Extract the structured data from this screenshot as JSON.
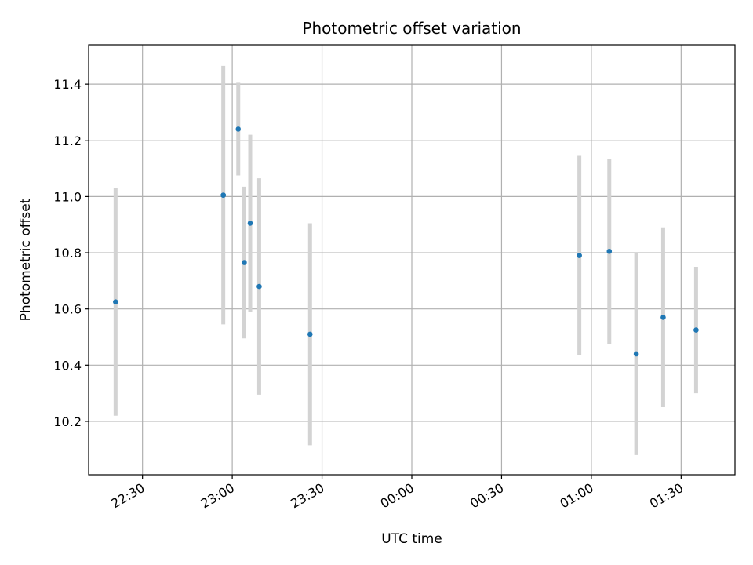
{
  "chart_data": {
    "type": "scatter",
    "title": "Photometric offset variation",
    "xlabel": "UTC time",
    "ylabel": "Photometric offset",
    "x_axis_type": "time",
    "xlim": [
      "22:12",
      "01:48"
    ],
    "ylim": [
      10.01,
      11.54
    ],
    "xticks": [
      "22:30",
      "23:00",
      "23:30",
      "00:00",
      "00:30",
      "01:00",
      "01:30"
    ],
    "yticks": [
      10.2,
      10.4,
      10.6,
      10.8,
      11.0,
      11.2,
      11.4
    ],
    "ytick_labels": [
      "10.2",
      "10.4",
      "10.6",
      "10.8",
      "11.0",
      "11.2",
      "11.4"
    ],
    "grid": true,
    "legend": false,
    "colors": {
      "point": "#1f77b4",
      "errorbar": "#d3d3d3",
      "grid": "#b0b0b0"
    },
    "points": [
      {
        "x": "22:21",
        "y": 10.625,
        "err": 0.405
      },
      {
        "x": "22:57",
        "y": 11.005,
        "err": 0.46
      },
      {
        "x": "22:57",
        "y": 11.005,
        "err": 0.0
      },
      {
        "x": "23:02",
        "y": 11.24,
        "err": 0.165
      },
      {
        "x": "23:04",
        "y": 10.765,
        "err": 0.27
      },
      {
        "x": "23:06",
        "y": 10.905,
        "err": 0.315
      },
      {
        "x": "23:09",
        "y": 10.68,
        "err": 0.385
      },
      {
        "x": "23:26",
        "y": 10.51,
        "err": 0.395
      },
      {
        "x": "00:56",
        "y": 10.79,
        "err": 0.355
      },
      {
        "x": "01:06",
        "y": 10.805,
        "err": 0.33
      },
      {
        "x": "01:15",
        "y": 10.44,
        "err": 0.36
      },
      {
        "x": "01:24",
        "y": 10.57,
        "err": 0.32
      },
      {
        "x": "01:35",
        "y": 10.525,
        "err": 0.225
      }
    ]
  }
}
